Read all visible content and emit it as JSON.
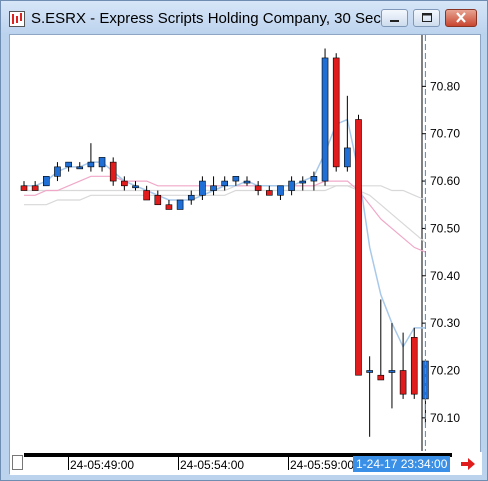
{
  "window": {
    "title": "S.ESRX - Express Scripts Holding Company, 30 Sec",
    "controls": [
      "minimize-icon",
      "maximize-icon",
      "close-icon"
    ]
  },
  "colors": {
    "up": "#1f6fd6",
    "down": "#e01c1c",
    "ma_fast": "#a9c9ea",
    "ma_mid": "#f0a8c8",
    "ma_slow": "#d8d8d8",
    "cursor": "#3a8fe6"
  },
  "chart_data": {
    "type": "candlestick",
    "ylim": [
      70.03,
      70.9
    ],
    "y_ticks": [
      "70.80",
      "70.70",
      "70.60",
      "70.50",
      "70.40",
      "70.30",
      "70.20",
      "70.10"
    ],
    "x_labels": [
      "24-05:49:00",
      "24-05:54:00",
      "24-05:59:00"
    ],
    "time_cursor": "1-24-17 23:34:00",
    "candles": [
      {
        "o": 70.59,
        "h": 70.6,
        "l": 70.58,
        "c": 70.58
      },
      {
        "o": 70.59,
        "h": 70.6,
        "l": 70.58,
        "c": 70.58
      },
      {
        "o": 70.59,
        "h": 70.61,
        "l": 70.59,
        "c": 70.61
      },
      {
        "o": 70.61,
        "h": 70.64,
        "l": 70.6,
        "c": 70.63
      },
      {
        "o": 70.63,
        "h": 70.64,
        "l": 70.62,
        "c": 70.64
      },
      {
        "o": 70.63,
        "h": 70.64,
        "l": 70.63,
        "c": 70.63
      },
      {
        "o": 70.63,
        "h": 70.68,
        "l": 70.62,
        "c": 70.64
      },
      {
        "o": 70.63,
        "h": 70.65,
        "l": 70.62,
        "c": 70.65
      },
      {
        "o": 70.64,
        "h": 70.65,
        "l": 70.59,
        "c": 70.6
      },
      {
        "o": 70.6,
        "h": 70.61,
        "l": 70.58,
        "c": 70.59
      },
      {
        "o": 70.59,
        "h": 70.6,
        "l": 70.58,
        "c": 70.59
      },
      {
        "o": 70.58,
        "h": 70.59,
        "l": 70.56,
        "c": 70.56
      },
      {
        "o": 70.57,
        "h": 70.58,
        "l": 70.55,
        "c": 70.55
      },
      {
        "o": 70.55,
        "h": 70.56,
        "l": 70.54,
        "c": 70.54
      },
      {
        "o": 70.54,
        "h": 70.56,
        "l": 70.54,
        "c": 70.56
      },
      {
        "o": 70.56,
        "h": 70.58,
        "l": 70.55,
        "c": 70.57
      },
      {
        "o": 70.57,
        "h": 70.61,
        "l": 70.56,
        "c": 70.6
      },
      {
        "o": 70.58,
        "h": 70.61,
        "l": 70.57,
        "c": 70.59
      },
      {
        "o": 70.59,
        "h": 70.61,
        "l": 70.58,
        "c": 70.6
      },
      {
        "o": 70.6,
        "h": 70.61,
        "l": 70.59,
        "c": 70.61
      },
      {
        "o": 70.6,
        "h": 70.61,
        "l": 70.59,
        "c": 70.6
      },
      {
        "o": 70.59,
        "h": 70.6,
        "l": 70.57,
        "c": 70.58
      },
      {
        "o": 70.58,
        "h": 70.59,
        "l": 70.57,
        "c": 70.57
      },
      {
        "o": 70.57,
        "h": 70.59,
        "l": 70.56,
        "c": 70.59
      },
      {
        "o": 70.58,
        "h": 70.61,
        "l": 70.57,
        "c": 70.6
      },
      {
        "o": 70.6,
        "h": 70.61,
        "l": 70.58,
        "c": 70.6
      },
      {
        "o": 70.6,
        "h": 70.62,
        "l": 70.58,
        "c": 70.61
      },
      {
        "o": 70.6,
        "h": 70.88,
        "l": 70.59,
        "c": 70.86
      },
      {
        "o": 70.86,
        "h": 70.87,
        "l": 70.62,
        "c": 70.63
      },
      {
        "o": 70.63,
        "h": 70.78,
        "l": 70.62,
        "c": 70.67
      },
      {
        "o": 70.73,
        "h": 70.74,
        "l": 70.19,
        "c": 70.19
      },
      {
        "o": 70.2,
        "h": 70.23,
        "l": 70.06,
        "c": 70.2
      },
      {
        "o": 70.19,
        "h": 70.35,
        "l": 70.18,
        "c": 70.18
      },
      {
        "o": 70.2,
        "h": 70.3,
        "l": 70.12,
        "c": 70.2
      },
      {
        "o": 70.2,
        "h": 70.28,
        "l": 70.14,
        "c": 70.15
      },
      {
        "o": 70.27,
        "h": 70.29,
        "l": 70.14,
        "c": 70.15
      },
      {
        "o": 70.14,
        "h": 70.22,
        "l": 70.09,
        "c": 70.22
      }
    ],
    "series": [
      {
        "values": [
          70.59,
          70.59,
          70.6,
          70.62,
          70.63,
          70.63,
          70.64,
          70.64,
          70.62,
          70.6,
          70.59,
          70.58,
          70.57,
          70.56,
          70.56,
          70.56,
          70.57,
          70.58,
          70.59,
          70.59,
          70.6,
          70.59,
          70.59,
          70.59,
          70.59,
          70.6,
          70.61,
          70.66,
          70.72,
          70.73,
          70.62,
          70.46,
          70.36,
          70.3,
          70.25,
          70.29,
          70.29
        ]
      },
      {
        "values": [
          70.57,
          70.57,
          70.58,
          70.58,
          70.59,
          70.6,
          70.61,
          70.61,
          70.61,
          70.6,
          70.6,
          70.6,
          70.59,
          70.59,
          70.59,
          70.59,
          70.59,
          70.59,
          70.59,
          70.59,
          70.59,
          70.59,
          70.59,
          70.59,
          70.59,
          70.59,
          70.59,
          70.6,
          70.6,
          70.6,
          70.58,
          70.55,
          70.52,
          70.5,
          70.48,
          70.46,
          70.45
        ]
      },
      {
        "values": [
          70.55,
          70.55,
          70.55,
          70.56,
          70.56,
          70.56,
          70.57,
          70.57,
          70.57,
          70.57,
          70.57,
          70.57,
          70.57,
          70.57,
          70.57,
          70.57,
          70.57,
          70.57,
          70.57,
          70.58,
          70.58,
          70.58,
          70.58,
          70.58,
          70.58,
          70.58,
          70.58,
          70.58,
          70.59,
          70.59,
          70.58,
          70.57,
          70.55,
          70.53,
          70.51,
          70.49,
          70.47
        ]
      },
      {
        "values": [
          70.58,
          70.58,
          70.58,
          70.58,
          70.58,
          70.58,
          70.58,
          70.58,
          70.58,
          70.58,
          70.58,
          70.58,
          70.58,
          70.58,
          70.58,
          70.58,
          70.58,
          70.58,
          70.58,
          70.59,
          70.59,
          70.59,
          70.59,
          70.59,
          70.59,
          70.59,
          70.59,
          70.59,
          70.59,
          70.59,
          70.59,
          70.59,
          70.59,
          70.58,
          70.58,
          70.57,
          70.56
        ]
      }
    ]
  }
}
